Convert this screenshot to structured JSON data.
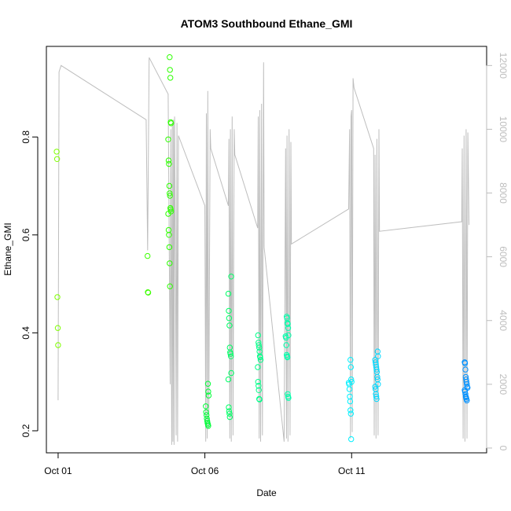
{
  "chart_data": {
    "type": "scatter",
    "title": "ATOM3 Southbound Ethane_GMI",
    "xlabel": "Date",
    "ylabel": "Ethane_GMI",
    "x_ticks": [
      {
        "label": "Oct 01",
        "day": 0
      },
      {
        "label": "Oct 06",
        "day": 5
      },
      {
        "label": "Oct 11",
        "day": 10
      }
    ],
    "xlim_days": [
      -0.4,
      14.6
    ],
    "ylim": [
      0.155,
      0.985
    ],
    "y_ticks": [
      0.2,
      0.4,
      0.6,
      0.8
    ],
    "y2lim": [
      -150,
      12600
    ],
    "y2_ticks": [
      0,
      2000,
      4000,
      6000,
      8000,
      10000,
      12000
    ],
    "grid": false,
    "legend": "none",
    "colors": {
      "line": "#bebebe",
      "point_palette": [
        "#7fff00",
        "#2dff00",
        "#00ff66",
        "#00ffaa",
        "#00ffcc",
        "#00f0ff",
        "#00d8ff",
        "#00b4ff",
        "#0090ff"
      ]
    },
    "series": [
      {
        "day": 0.0,
        "color": "#7fff00",
        "y": [
          0.77,
          0.755,
          0.473,
          0.41,
          0.375
        ]
      },
      {
        "day": 3.07,
        "color": "#3cff00",
        "y": [
          0.557,
          0.483,
          0.482
        ]
      },
      {
        "day": 3.8,
        "color": "#2dff00",
        "y": [
          0.963,
          0.937,
          0.921,
          0.83,
          0.828,
          0.795,
          0.752,
          0.745,
          0.7,
          0.685,
          0.68,
          0.655,
          0.652,
          0.648,
          0.643,
          0.61,
          0.6,
          0.575,
          0.542,
          0.495
        ]
      },
      {
        "day": 5.08,
        "color": "#00ff38",
        "y": [
          0.296,
          0.28,
          0.272,
          0.25,
          0.238,
          0.232,
          0.225,
          0.22,
          0.216,
          0.213,
          0.21
        ]
      },
      {
        "day": 5.85,
        "color": "#00ff66",
        "y": [
          0.515,
          0.48,
          0.445,
          0.43,
          0.415,
          0.37,
          0.36,
          0.357,
          0.352,
          0.318,
          0.305,
          0.248,
          0.24,
          0.235,
          0.228
        ]
      },
      {
        "day": 6.85,
        "color": "#00ff88",
        "y": [
          0.395,
          0.38,
          0.375,
          0.37,
          0.362,
          0.352,
          0.35,
          0.345,
          0.33,
          0.3,
          0.292,
          0.283,
          0.265,
          0.264
        ]
      },
      {
        "day": 7.8,
        "color": "#00ffaa",
        "y": [
          0.433,
          0.43,
          0.42,
          0.418,
          0.41,
          0.395,
          0.393,
          0.39,
          0.375,
          0.355,
          0.352,
          0.35,
          0.275,
          0.27,
          0.267
        ]
      },
      {
        "day": 9.95,
        "color": "#00f0ff",
        "y": [
          0.345,
          0.33,
          0.305,
          0.3,
          0.298,
          0.295,
          0.285,
          0.27,
          0.26,
          0.242,
          0.235,
          0.183
        ]
      },
      {
        "day": 10.85,
        "color": "#00d8ff",
        "y": [
          0.362,
          0.352,
          0.345,
          0.34,
          0.335,
          0.33,
          0.325,
          0.32,
          0.31,
          0.305,
          0.295,
          0.29,
          0.285,
          0.275,
          0.27,
          0.265
        ]
      },
      {
        "day": 13.9,
        "color": "#0090ff",
        "y": [
          0.34,
          0.338,
          0.325,
          0.31,
          0.305,
          0.3,
          0.295,
          0.29,
          0.288,
          0.283,
          0.28,
          0.275,
          0.27,
          0.268,
          0.265,
          0.262
        ]
      }
    ],
    "altitude_line": {
      "axis": "right",
      "points": [
        [
          0.0,
          1500
        ],
        [
          0.03,
          11800
        ],
        [
          0.1,
          12000
        ],
        [
          3.0,
          10300
        ],
        [
          3.05,
          6200
        ],
        [
          3.1,
          12250
        ],
        [
          3.75,
          11100
        ],
        [
          3.82,
          2000
        ],
        [
          3.84,
          10000
        ],
        [
          3.87,
          100
        ],
        [
          3.89,
          10200
        ],
        [
          3.91,
          200
        ],
        [
          3.93,
          10300
        ],
        [
          3.95,
          100
        ],
        [
          3.97,
          10400
        ],
        [
          4.0,
          5500
        ],
        [
          4.02,
          400
        ],
        [
          4.05,
          10200
        ],
        [
          4.07,
          200
        ],
        [
          4.1,
          9800
        ],
        [
          5.0,
          7600
        ],
        [
          5.03,
          200
        ],
        [
          5.05,
          10500
        ],
        [
          5.08,
          300
        ],
        [
          5.1,
          11200
        ],
        [
          5.13,
          600
        ],
        [
          5.18,
          10000
        ],
        [
          5.2,
          9400
        ],
        [
          5.8,
          7600
        ],
        [
          5.82,
          9700
        ],
        [
          5.85,
          300
        ],
        [
          5.87,
          10000
        ],
        [
          5.9,
          200
        ],
        [
          5.93,
          10400
        ],
        [
          5.96,
          400
        ],
        [
          6.0,
          10000
        ],
        [
          6.02,
          9200
        ],
        [
          6.8,
          6900
        ],
        [
          6.82,
          10400
        ],
        [
          6.85,
          300
        ],
        [
          6.87,
          10600
        ],
        [
          6.9,
          200
        ],
        [
          6.93,
          10800
        ],
        [
          6.96,
          400
        ],
        [
          7.0,
          12100
        ],
        [
          7.02,
          6300
        ],
        [
          7.7,
          200
        ],
        [
          7.75,
          9400
        ],
        [
          7.78,
          300
        ],
        [
          7.8,
          9800
        ],
        [
          7.83,
          200
        ],
        [
          7.87,
          10000
        ],
        [
          7.9,
          400
        ],
        [
          7.93,
          9600
        ],
        [
          7.95,
          6400
        ],
        [
          9.9,
          7500
        ],
        [
          9.93,
          10000
        ],
        [
          9.96,
          300
        ],
        [
          9.98,
          10400
        ],
        [
          10.0,
          10600
        ],
        [
          10.02,
          500
        ],
        [
          10.05,
          11600
        ],
        [
          10.08,
          11300
        ],
        [
          10.75,
          9400
        ],
        [
          10.77,
          400
        ],
        [
          10.8,
          9200
        ],
        [
          10.83,
          300
        ],
        [
          10.86,
          9700
        ],
        [
          10.9,
          400
        ],
        [
          10.93,
          10000
        ],
        [
          10.95,
          6800
        ],
        [
          13.75,
          7100
        ],
        [
          13.77,
          9400
        ],
        [
          13.8,
          300
        ],
        [
          13.83,
          9800
        ],
        [
          13.86,
          200
        ],
        [
          13.9,
          10000
        ],
        [
          13.93,
          300
        ],
        [
          13.96,
          9900
        ],
        [
          14.0,
          7000
        ]
      ]
    }
  }
}
